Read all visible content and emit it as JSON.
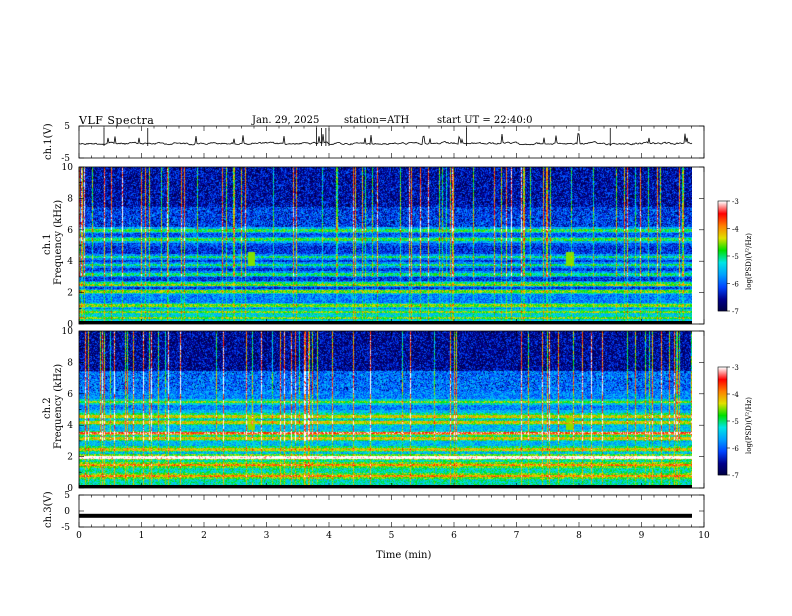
{
  "header": {
    "title": "VLF  Spectra",
    "date": "Jan. 29, 2025",
    "station": "station=ATH",
    "start": "start  UT  =   22:40:0"
  },
  "chart_data": [
    {
      "type": "line",
      "ylabel": "ch.1(V)",
      "ylim": [
        -5,
        5
      ],
      "y_ticks": [
        "5",
        "-5"
      ],
      "xlim": [
        0,
        10
      ],
      "description_values": "noisy waveform centered near 0 V with spikes up to ~5 V"
    },
    {
      "type": "heatmap",
      "ylabel": "ch.1\nFrequency  (kHz)",
      "ylabel_top": "ch.1",
      "ylabel_bottom": "Frequency  (kHz)",
      "ylim": [
        0,
        10
      ],
      "y_ticks": [
        "0",
        "2",
        "4",
        "6",
        "8",
        "10"
      ],
      "xlim": [
        0,
        10
      ],
      "colorbar": {
        "min": -7,
        "max": -3,
        "ticks": [
          "-3",
          "-4",
          "-5",
          "-6",
          "-7"
        ],
        "label": "log(PSD)(V²/Hz)"
      },
      "bands_khz": [
        0.4,
        0.8,
        1.2,
        2.1,
        2.6,
        3.2,
        3.8,
        4.3,
        5.4,
        6.0
      ],
      "bursts_min": [
        2.75,
        7.85
      ]
    },
    {
      "type": "heatmap",
      "ylabel_top": "ch.2",
      "ylabel_bottom": "Frequency  (kHz)",
      "ylim": [
        0,
        10
      ],
      "y_ticks": [
        "0",
        "2",
        "4",
        "6",
        "8",
        "10"
      ],
      "xlim": [
        0,
        10
      ],
      "colorbar": {
        "min": -7,
        "max": -3,
        "ticks": [
          "-3",
          "-4",
          "-5",
          "-6",
          "-7"
        ],
        "label": "log(PSD)(V²/Hz)"
      },
      "bands_khz": [
        0.8,
        1.5,
        2.0,
        2.5,
        3.2,
        3.5,
        4.2,
        4.6,
        5.5
      ],
      "bursts_min": [
        2.75,
        7.85
      ]
    },
    {
      "type": "line",
      "ylabel": "ch.3(V)",
      "ylim": [
        -5,
        5
      ],
      "y_ticks": [
        "5",
        "0",
        "-5"
      ],
      "xlim": [
        0,
        10
      ],
      "x_ticks": [
        "0",
        "1",
        "2",
        "3",
        "4",
        "5",
        "6",
        "7",
        "8",
        "9",
        "10"
      ],
      "xlabel": "Time  (min)",
      "constant_value": -1.5
    }
  ],
  "colors": {
    "spectral": [
      "#000040",
      "#00008b",
      "#0044ff",
      "#00a0ff",
      "#00e5e5",
      "#00e000",
      "#e0e000",
      "#ff8000",
      "#ff0000",
      "#ffffff"
    ]
  }
}
